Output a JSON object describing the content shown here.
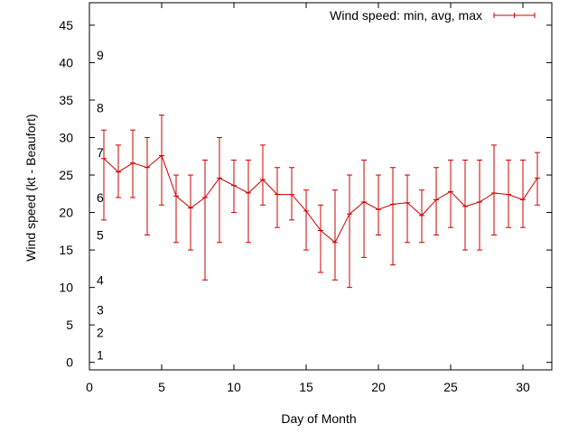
{
  "chart_data": {
    "type": "line",
    "xlabel": "Day of Month",
    "ylabel": "Wind speed (kt - Beaufort)",
    "xlim": [
      0,
      32
    ],
    "ylim": [
      -1,
      48
    ],
    "x_ticks": [
      0,
      5,
      10,
      15,
      20,
      25,
      30
    ],
    "y_ticks": [
      0,
      5,
      10,
      15,
      20,
      25,
      30,
      35,
      40,
      45
    ],
    "grid": false,
    "legend_position": "top-right",
    "series_color": "#cc0000",
    "beaufort_labels": [
      {
        "label": "1",
        "value": 1
      },
      {
        "label": "2",
        "value": 4
      },
      {
        "label": "3",
        "value": 7
      },
      {
        "label": "4",
        "value": 11
      },
      {
        "label": "5",
        "value": 17
      },
      {
        "label": "6",
        "value": 22
      },
      {
        "label": "7",
        "value": 28
      },
      {
        "label": "8",
        "value": 34
      },
      {
        "label": "9",
        "value": 41
      }
    ],
    "series": [
      {
        "name": "Wind speed: min, avg, max",
        "x": [
          1,
          2,
          3,
          4,
          5,
          6,
          7,
          8,
          9,
          10,
          11,
          12,
          13,
          14,
          15,
          16,
          17,
          18,
          19,
          20,
          21,
          22,
          23,
          24,
          25,
          26,
          27,
          28,
          29,
          30,
          31
        ],
        "avg": [
          27.2,
          25.4,
          26.6,
          26,
          27.6,
          22.2,
          20.6,
          22,
          24.6,
          23.6,
          22.6,
          24.4,
          22.4,
          22.4,
          20.2,
          17.6,
          16,
          19.8,
          21.4,
          20.4,
          21.1,
          21.3,
          19.6,
          21.7,
          22.8,
          20.8,
          21.4,
          22.6,
          22.4,
          21.7,
          24.6
        ],
        "min": [
          19,
          22,
          22,
          17,
          21,
          16,
          15,
          11,
          16,
          20,
          16,
          21,
          18,
          19,
          15,
          12,
          11,
          10,
          14,
          17,
          13,
          16,
          16,
          17,
          18,
          15,
          15,
          17,
          18,
          18,
          21
        ],
        "max": [
          31,
          29,
          31,
          30,
          33,
          25,
          25,
          27,
          30,
          27,
          27,
          29,
          26,
          26,
          23,
          21,
          23,
          25,
          27,
          25,
          26,
          25,
          23,
          26,
          27,
          27,
          27,
          29,
          27,
          27,
          28
        ]
      }
    ]
  }
}
